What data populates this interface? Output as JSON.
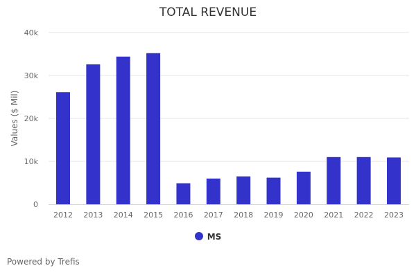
{
  "chart_data": {
    "type": "bar",
    "title": "TOTAL REVENUE",
    "xlabel": "",
    "ylabel": "Values ($ Mil)",
    "ylim": [
      0,
      40000
    ],
    "yticks": [
      0,
      10000,
      20000,
      30000,
      40000
    ],
    "ytick_labels": [
      "0",
      "10k",
      "20k",
      "30k",
      "40k"
    ],
    "grid": true,
    "categories": [
      "2012",
      "2013",
      "2014",
      "2015",
      "2016",
      "2017",
      "2018",
      "2019",
      "2020",
      "2021",
      "2022",
      "2023"
    ],
    "series": [
      {
        "name": "MS",
        "color": "#3333cc",
        "values": [
          26100,
          32600,
          34400,
          35200,
          4900,
          6000,
          6500,
          6200,
          7600,
          11000,
          11000,
          10900
        ]
      }
    ],
    "legend_position": "bottom"
  },
  "footer": {
    "credit": "Powered by Trefis"
  }
}
